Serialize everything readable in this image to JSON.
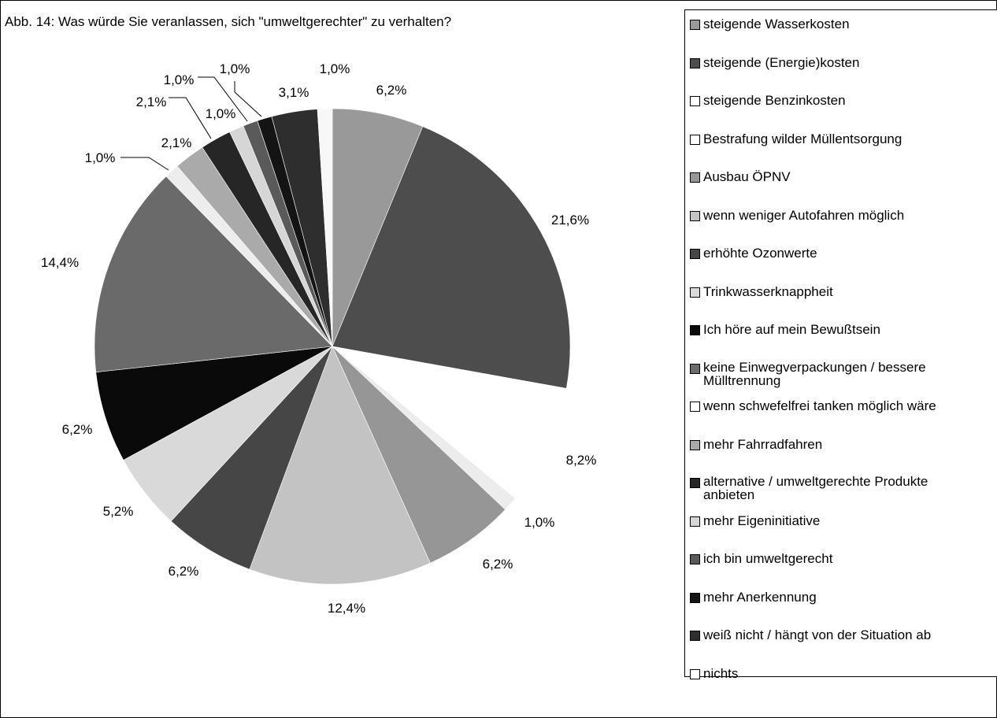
{
  "title": "Abb. 14: Was würde Sie veranlassen, sich \"umweltgerechter\" zu verhalten?",
  "chart_data": {
    "type": "pie",
    "title": "Abb. 14: Was würde Sie veranlassen, sich \"umweltgerechter\" zu verhalten?",
    "legend_position": "right",
    "start_direction": "top, clockwise",
    "slices": [
      {
        "label": "steigende Wasserkosten",
        "value": 6.2,
        "value_label": "6,2%",
        "color": "#999999"
      },
      {
        "label": "steigende (Energie)kosten",
        "value": 21.6,
        "value_label": "21,6%",
        "color": "#4d4d4d"
      },
      {
        "label": "steigende Benzinkosten",
        "value": 8.2,
        "value_label": "8,2%",
        "color": "#ffffff"
      },
      {
        "label": "Bestrafung wilder Müllentsorgung",
        "value": 1.0,
        "value_label": "1,0%",
        "color": "#ececec"
      },
      {
        "label": "Ausbau ÖPNV",
        "value": 6.2,
        "value_label": "6,2%",
        "color": "#969696"
      },
      {
        "label": "wenn weniger Autofahren möglich",
        "value": 12.4,
        "value_label": "12,4%",
        "color": "#c3c3c3"
      },
      {
        "label": "erhöhte Ozonwerte",
        "value": 6.2,
        "value_label": "6,2%",
        "color": "#464646"
      },
      {
        "label": "Trinkwasserknappheit",
        "value": 5.2,
        "value_label": "5,2%",
        "color": "#d9d9d9"
      },
      {
        "label": "Ich höre auf mein Bewußtsein",
        "value": 6.2,
        "value_label": "6,2%",
        "color": "#0a0a0a"
      },
      {
        "label": "keine Einwegverpackungen / bessere Mülltrennung",
        "value": 14.4,
        "value_label": "14,4%",
        "color": "#6a6a6a"
      },
      {
        "label": "wenn schwefelfrei tanken möglich wäre",
        "value": 1.0,
        "value_label": "1,0%",
        "color": "#ededed"
      },
      {
        "label": "mehr Fahrradfahren",
        "value": 2.1,
        "value_label": "2,1%",
        "color": "#aaaaaa"
      },
      {
        "label": "alternative / umweltgerechte Produkte anbieten",
        "value": 2.1,
        "value_label": "2,1%",
        "color": "#262626"
      },
      {
        "label": "mehr Eigeninitiative",
        "value": 1.0,
        "value_label": "1,0%",
        "color": "#d6d6d6"
      },
      {
        "label": "ich bin umweltgerecht",
        "value": 1.0,
        "value_label": "1,0%",
        "color": "#5a5a5a"
      },
      {
        "label": "mehr Anerkennung",
        "value": 1.0,
        "value_label": "1,0%",
        "color": "#141414"
      },
      {
        "label": "weiß nicht / hängt von der Situation ab",
        "value": 3.1,
        "value_label": "3,1%",
        "color": "#2e2e2e"
      },
      {
        "label": "nichts",
        "value": 1.0,
        "value_label": "1,0%",
        "color": "#f7f7f7"
      }
    ]
  },
  "legend": {
    "items": [
      {
        "label": "steigende Wasserkosten",
        "color": "#999999"
      },
      {
        "label": "steigende (Energie)kosten",
        "color": "#4d4d4d"
      },
      {
        "label": "steigende Benzinkosten",
        "color": "#ffffff"
      },
      {
        "label": "Bestrafung wilder Müllentsorgung",
        "color": "#ffffff"
      },
      {
        "label": "Ausbau ÖPNV",
        "color": "#969696"
      },
      {
        "label": "wenn weniger Autofahren möglich",
        "color": "#c3c3c3"
      },
      {
        "label": "erhöhte Ozonwerte",
        "color": "#464646"
      },
      {
        "label": "Trinkwasserknappheit",
        "color": "#d9d9d9"
      },
      {
        "label": "Ich höre auf mein Bewußtsein",
        "color": "#0a0a0a"
      },
      {
        "label": "keine Einwegverpackungen / bessere Mülltrennung",
        "color": "#6a6a6a",
        "lines": [
          "keine Einwegverpackungen / bessere",
          "Mülltrennung"
        ]
      },
      {
        "label": "wenn schwefelfrei tanken möglich wäre",
        "color": "#ffffff"
      },
      {
        "label": "mehr Fahrradfahren",
        "color": "#aaaaaa"
      },
      {
        "label": "alternative / umweltgerechte Produkte anbieten",
        "color": "#262626",
        "lines": [
          "alternative / umweltgerechte Produkte",
          "anbieten"
        ]
      },
      {
        "label": "mehr Eigeninitiative",
        "color": "#d6d6d6"
      },
      {
        "label": "ich bin umweltgerecht",
        "color": "#5a5a5a"
      },
      {
        "label": "mehr Anerkennung",
        "color": "#141414"
      },
      {
        "label": "weiß nicht / hängt von der Situation ab",
        "color": "#2e2e2e"
      },
      {
        "label": "nichts",
        "color": "#ffffff"
      }
    ]
  }
}
